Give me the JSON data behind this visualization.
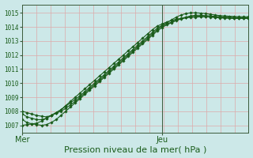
{
  "background_color": "#cce8e8",
  "grid_color": "#ddaaaa",
  "line_color": "#1a5c1a",
  "marker": "D",
  "markersize": 1.8,
  "linewidth": 0.8,
  "xlabel": "Pression niveau de la mer( hPa )",
  "xlabel_fontsize": 8,
  "yticks": [
    1007,
    1008,
    1009,
    1010,
    1011,
    1012,
    1013,
    1014,
    1015
  ],
  "ylim": [
    1006.5,
    1015.6
  ],
  "xlim": [
    0,
    47
  ],
  "xtick_positions": [
    0,
    29
  ],
  "xtick_labels": [
    "Mer",
    "Jeu"
  ],
  "vline_x": 29,
  "n_xgrid": 16,
  "series": [
    [
      1007.0,
      1007.05,
      1007.1,
      1007.15,
      1007.3,
      1007.5,
      1007.7,
      1007.9,
      1008.1,
      1008.4,
      1008.7,
      1009.0,
      1009.3,
      1009.6,
      1009.9,
      1010.2,
      1010.5,
      1010.8,
      1011.1,
      1011.4,
      1011.7,
      1012.0,
      1012.3,
      1012.6,
      1012.9,
      1013.2,
      1013.5,
      1013.8,
      1014.05,
      1014.2,
      1014.35,
      1014.45,
      1014.55,
      1014.6,
      1014.65,
      1014.68,
      1014.7,
      1014.72,
      1014.72,
      1014.72,
      1014.7,
      1014.68,
      1014.66,
      1014.65,
      1014.64,
      1014.63,
      1014.63,
      1014.62
    ],
    [
      1007.8,
      1007.6,
      1007.5,
      1007.4,
      1007.4,
      1007.5,
      1007.7,
      1007.9,
      1008.1,
      1008.35,
      1008.6,
      1008.85,
      1009.1,
      1009.4,
      1009.7,
      1010.0,
      1010.3,
      1010.6,
      1010.9,
      1011.2,
      1011.5,
      1011.8,
      1012.1,
      1012.4,
      1012.7,
      1013.0,
      1013.3,
      1013.6,
      1013.9,
      1014.1,
      1014.3,
      1014.5,
      1014.7,
      1014.85,
      1014.95,
      1015.0,
      1015.0,
      1014.98,
      1014.95,
      1014.9,
      1014.85,
      1014.8,
      1014.78,
      1014.76,
      1014.74,
      1014.72,
      1014.72,
      1014.72
    ],
    [
      1008.0,
      1007.9,
      1007.8,
      1007.7,
      1007.65,
      1007.6,
      1007.7,
      1007.85,
      1008.0,
      1008.2,
      1008.45,
      1008.7,
      1009.0,
      1009.3,
      1009.6,
      1009.9,
      1010.2,
      1010.5,
      1010.8,
      1011.1,
      1011.4,
      1011.7,
      1012.0,
      1012.3,
      1012.6,
      1012.9,
      1013.2,
      1013.5,
      1013.8,
      1014.05,
      1014.2,
      1014.35,
      1014.5,
      1014.6,
      1014.7,
      1014.78,
      1014.83,
      1014.83,
      1014.8,
      1014.78,
      1014.75,
      1014.72,
      1014.7,
      1014.68,
      1014.67,
      1014.66,
      1014.65,
      1014.64
    ],
    [
      1007.4,
      1007.2,
      1007.1,
      1007.05,
      1007.0,
      1007.05,
      1007.2,
      1007.4,
      1007.7,
      1008.0,
      1008.3,
      1008.6,
      1008.9,
      1009.2,
      1009.5,
      1009.8,
      1010.1,
      1010.4,
      1010.7,
      1011.0,
      1011.3,
      1011.6,
      1011.9,
      1012.2,
      1012.5,
      1012.8,
      1013.1,
      1013.4,
      1013.7,
      1013.95,
      1014.15,
      1014.3,
      1014.45,
      1014.57,
      1014.65,
      1014.72,
      1014.75,
      1014.75,
      1014.73,
      1014.7,
      1014.67,
      1014.64,
      1014.62,
      1014.61,
      1014.6,
      1014.6,
      1014.6,
      1014.6
    ]
  ]
}
